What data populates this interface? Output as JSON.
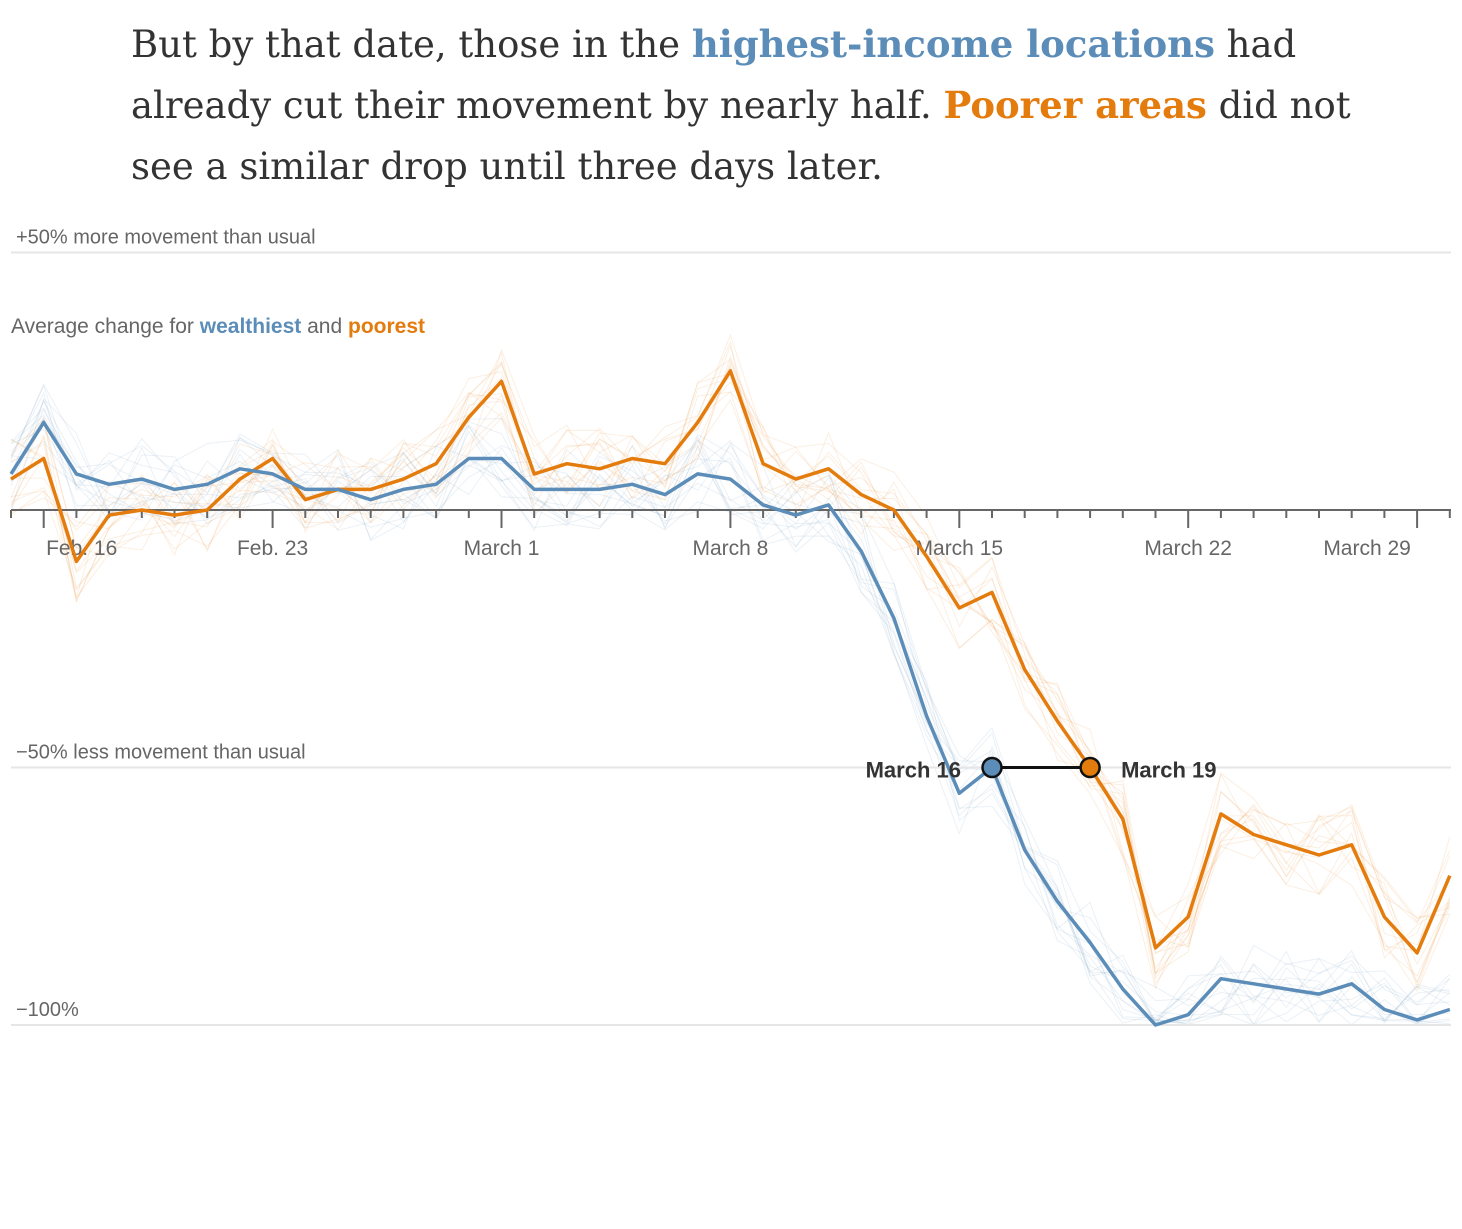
{
  "narrative": {
    "part1": "But by that date, those in the ",
    "highlight_blue": "highest-income locations",
    "part2": " had already cut their movement by nearly half. ",
    "highlight_orange": "Poorer areas",
    "part3": " did not see a similar drop until three days later."
  },
  "colors": {
    "wealthiest": "#5b8db8",
    "poorest": "#e47b0d",
    "text": "#333333",
    "axis": "#666666",
    "gridline": "#e6e6e6"
  },
  "chart_data": {
    "type": "line",
    "title": "",
    "xlabel": "",
    "ylabel": "",
    "ylim": [
      -100,
      50
    ],
    "y_reference_lines": [
      {
        "value": 50,
        "label": "+50% more movement than usual"
      },
      {
        "value": -50,
        "label": "−50% less movement than usual"
      },
      {
        "value": -100,
        "label": "−100%"
      }
    ],
    "x_tick_labels": [
      {
        "day": "2020-02-16",
        "label": "Feb. 16"
      },
      {
        "day": "2020-02-23",
        "label": "Feb. 23"
      },
      {
        "day": "2020-03-01",
        "label": "March 1"
      },
      {
        "day": "2020-03-08",
        "label": "March 8"
      },
      {
        "day": "2020-03-15",
        "label": "March 15"
      },
      {
        "day": "2020-03-22",
        "label": "March 22"
      },
      {
        "day": "2020-03-29",
        "label": "March 29"
      }
    ],
    "legend_text": {
      "prefix": "Average change for ",
      "wealthiest": "wealthiest",
      "middle": " and ",
      "poorest": "poorest"
    },
    "x": [
      "2020-02-15",
      "2020-02-16",
      "2020-02-17",
      "2020-02-18",
      "2020-02-19",
      "2020-02-20",
      "2020-02-21",
      "2020-02-22",
      "2020-02-23",
      "2020-02-24",
      "2020-02-25",
      "2020-02-26",
      "2020-02-27",
      "2020-02-28",
      "2020-02-29",
      "2020-03-01",
      "2020-03-02",
      "2020-03-03",
      "2020-03-04",
      "2020-03-05",
      "2020-03-06",
      "2020-03-07",
      "2020-03-08",
      "2020-03-09",
      "2020-03-10",
      "2020-03-11",
      "2020-03-12",
      "2020-03-13",
      "2020-03-14",
      "2020-03-15",
      "2020-03-16",
      "2020-03-17",
      "2020-03-18",
      "2020-03-19",
      "2020-03-20",
      "2020-03-21",
      "2020-03-22",
      "2020-03-23",
      "2020-03-24",
      "2020-03-25",
      "2020-03-26",
      "2020-03-27",
      "2020-03-28",
      "2020-03-29",
      "2020-03-30"
    ],
    "series": [
      {
        "name": "wealthiest",
        "values": [
          7,
          17,
          7,
          5,
          6,
          4,
          5,
          8,
          7,
          4,
          4,
          2,
          4,
          5,
          10,
          10,
          4,
          4,
          4,
          5,
          3,
          7,
          6,
          1,
          -1,
          1,
          -8,
          -21,
          -40,
          -55,
          -50,
          -66,
          -76,
          -84,
          -93,
          -100,
          -98,
          -91,
          -92,
          -93,
          -94,
          -92,
          -97,
          -99,
          -97
        ]
      },
      {
        "name": "poorest",
        "values": [
          6,
          10,
          -10,
          -1,
          0,
          -1,
          0,
          6,
          10,
          2,
          4,
          4,
          6,
          9,
          18,
          25,
          7,
          9,
          8,
          10,
          9,
          17,
          27,
          9,
          6,
          8,
          3,
          0,
          -9,
          -19,
          -16,
          -31,
          -41,
          -50,
          -60,
          -85,
          -79,
          -59,
          -63,
          -65,
          -67,
          -65,
          -79,
          -86,
          -71
        ]
      }
    ],
    "annotations": [
      {
        "day": "2020-03-16",
        "value": -50,
        "label": "March 16",
        "series": "wealthiest"
      },
      {
        "day": "2020-03-19",
        "value": -50,
        "label": "March 19",
        "series": "poorest"
      }
    ]
  }
}
